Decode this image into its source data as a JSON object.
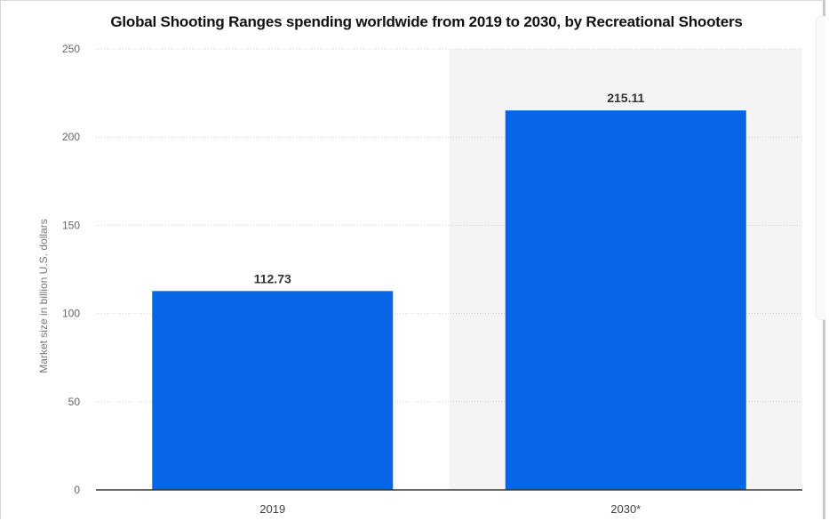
{
  "chart_data": {
    "type": "bar",
    "title": "Global Shooting Ranges spending worldwide from 2019 to 2030, by Recreational Shooters",
    "ylabel": "Market size in billion U.S. dollars",
    "xlabel": "",
    "categories": [
      "2019",
      "2030*"
    ],
    "values": [
      112.73,
      215.11
    ],
    "value_labels": [
      "112.73",
      "215.11"
    ],
    "ylim": [
      0,
      250
    ],
    "yticks": [
      0,
      50,
      100,
      150,
      200,
      250
    ],
    "ytick_labels": [
      "0",
      "50",
      "100",
      "150",
      "200",
      "250"
    ],
    "grid": true,
    "bar_color": "#0866e6",
    "projection_shading": "#f4f4f4",
    "legend": "none"
  }
}
